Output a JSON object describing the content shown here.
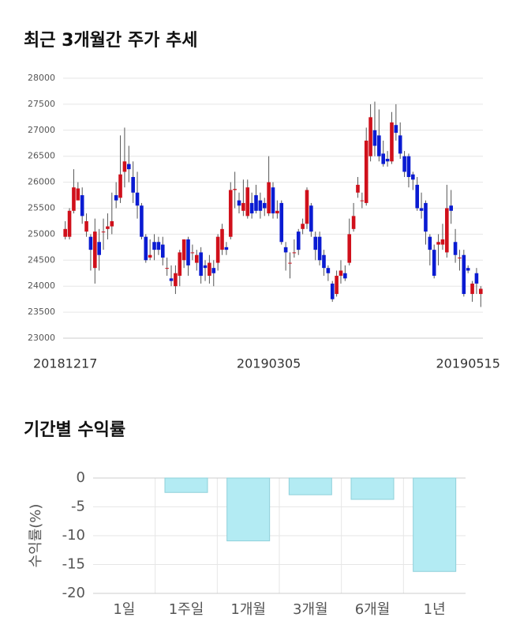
{
  "chart_data": [
    {
      "type": "candlestick",
      "title": "최근 3개월간 주가 추세",
      "x": [
        "20181217",
        null,
        null,
        null,
        null,
        null,
        null,
        null,
        null,
        null,
        null,
        null,
        null,
        null,
        null,
        null,
        null,
        null,
        null,
        null,
        null,
        null,
        null,
        null,
        null,
        null,
        null,
        null,
        null,
        null,
        null,
        null,
        null,
        null,
        null,
        null,
        null,
        null,
        null,
        null,
        null,
        null,
        null,
        null,
        null,
        null,
        null,
        null,
        "20190305",
        null,
        null,
        null,
        null,
        null,
        null,
        null,
        null,
        null,
        null,
        null,
        null,
        null,
        null,
        null,
        null,
        null,
        null,
        null,
        null,
        null,
        null,
        null,
        null,
        null,
        null,
        null,
        null,
        null,
        null,
        null,
        null,
        null,
        null,
        null,
        null,
        null,
        null,
        null,
        null,
        null,
        null,
        null,
        null,
        null,
        null,
        "20190515",
        null,
        null,
        null
      ],
      "open": [
        24950,
        24950,
        25450,
        25650,
        25750,
        25050,
        24950,
        24350,
        24850,
        25050,
        25100,
        25150,
        25750,
        25700,
        26200,
        26350,
        26100,
        25800,
        25550,
        24950,
        24550,
        24850,
        24850,
        24800,
        24350,
        24150,
        24000,
        24200,
        24500,
        24900,
        24650,
        24450,
        24650,
        24400,
        24200,
        24350,
        24450,
        24700,
        24750,
        24950,
        25850,
        25650,
        25450,
        25350,
        25600,
        25750,
        25650,
        25600,
        25400,
        25900,
        25400,
        25600,
        24750,
        24450,
        24650,
        25050,
        25100,
        25200,
        25550,
        24950,
        24950,
        24600,
        24350,
        24050,
        23850,
        24200,
        24250,
        24450,
        25100,
        25800,
        25650,
        25600,
        26500,
        27000,
        26900,
        26550,
        26450,
        26400,
        27100,
        26900,
        26500,
        26500,
        26150,
        25950,
        25500,
        25600,
        24950,
        24700,
        24800,
        24800,
        24650,
        25550,
        24850,
        24550,
        24600,
        24350,
        23850,
        24250,
        23850
      ],
      "high": [
        25250,
        25500,
        26250,
        26000,
        25900,
        25400,
        25000,
        25300,
        25100,
        25300,
        25400,
        25800,
        26000,
        26900,
        27050,
        26700,
        26400,
        26200,
        25600,
        25000,
        24900,
        25000,
        24950,
        24950,
        24550,
        24400,
        24400,
        24700,
        24900,
        24950,
        24800,
        24700,
        24750,
        24500,
        24600,
        24500,
        25000,
        25200,
        24850,
        26000,
        26200,
        25800,
        26050,
        26050,
        25800,
        25950,
        25800,
        25700,
        26500,
        26000,
        25650,
        25650,
        24850,
        24650,
        24900,
        25100,
        25300,
        25900,
        25600,
        25050,
        25050,
        24700,
        24400,
        24100,
        24300,
        24500,
        24400,
        25300,
        25600,
        26100,
        25800,
        27050,
        27500,
        27550,
        27400,
        26800,
        26600,
        27350,
        27500,
        27150,
        26600,
        26550,
        26200,
        26100,
        25800,
        25650,
        25000,
        24800,
        25000,
        25200,
        25950,
        25850,
        25100,
        24700,
        24700,
        24400,
        24100,
        24350,
        24000
      ],
      "low": [
        24900,
        24900,
        25400,
        25700,
        25200,
        24950,
        24300,
        24050,
        24300,
        24700,
        24900,
        25000,
        25500,
        25600,
        25900,
        26000,
        25600,
        25300,
        24900,
        24450,
        24500,
        24500,
        24600,
        24400,
        24200,
        24000,
        23850,
        24000,
        24350,
        24200,
        24500,
        24300,
        24050,
        24100,
        24050,
        24000,
        24300,
        24600,
        24600,
        24900,
        25500,
        25400,
        25350,
        25300,
        25300,
        25400,
        25300,
        25350,
        25350,
        25300,
        25300,
        24800,
        24300,
        24150,
        24550,
        24600,
        25000,
        25100,
        24950,
        24500,
        24400,
        24200,
        24100,
        23700,
        23800,
        24050,
        24100,
        24400,
        25050,
        25700,
        25500,
        25550,
        26400,
        26500,
        26400,
        26300,
        26300,
        26350,
        26800,
        26450,
        26100,
        25900,
        25850,
        25450,
        25300,
        24800,
        24400,
        24150,
        24400,
        24700,
        24550,
        25200,
        24450,
        24300,
        23800,
        24250,
        23700,
        23850,
        23600
      ],
      "close": [
        25100,
        25450,
        25900,
        25880,
        25350,
        25250,
        24700,
        25050,
        24600,
        25050,
        25150,
        25250,
        25650,
        26150,
        26400,
        26250,
        25800,
        25550,
        24950,
        24500,
        24600,
        24700,
        24700,
        24550,
        24350,
        24100,
        24250,
        24650,
        24900,
        24400,
        24650,
        24600,
        24200,
        24350,
        24450,
        24250,
        24950,
        25100,
        24700,
        25850,
        25870,
        25550,
        25600,
        25900,
        25400,
        25450,
        25450,
        25500,
        26000,
        25400,
        25450,
        24850,
        24650,
        24450,
        24650,
        24700,
        25200,
        25850,
        25050,
        24700,
        24500,
        24350,
        24250,
        23750,
        24200,
        24300,
        24150,
        25000,
        25350,
        25950,
        25650,
        26800,
        27250,
        26700,
        26500,
        26350,
        26400,
        27150,
        26950,
        26550,
        26200,
        26100,
        26050,
        25500,
        25450,
        25050,
        24700,
        24200,
        24850,
        24900,
        25500,
        25450,
        24600,
        24550,
        23850,
        24300,
        24050,
        24050,
        23950
      ],
      "up_color": "#d0101b",
      "down_color": "#0a1bd2",
      "ylim": [
        23000,
        28000
      ],
      "yticks": [
        23000,
        23500,
        24000,
        24500,
        25000,
        25500,
        26000,
        26500,
        27000,
        27500,
        28000
      ],
      "grid": true
    },
    {
      "type": "bar",
      "title": "기간별 수익률",
      "ylabel": "수익률(%)",
      "categories": [
        "1일",
        "1주일",
        "1개월",
        "3개월",
        "6개월",
        "1년"
      ],
      "values": [
        0,
        -2.5,
        -10.9,
        -2.9,
        -3.7,
        -16.2
      ],
      "color": "#b3ebf3",
      "ylim": [
        -20,
        0
      ],
      "yticks": [
        0,
        -5,
        -10,
        -15,
        -20
      ],
      "grid": true
    }
  ]
}
